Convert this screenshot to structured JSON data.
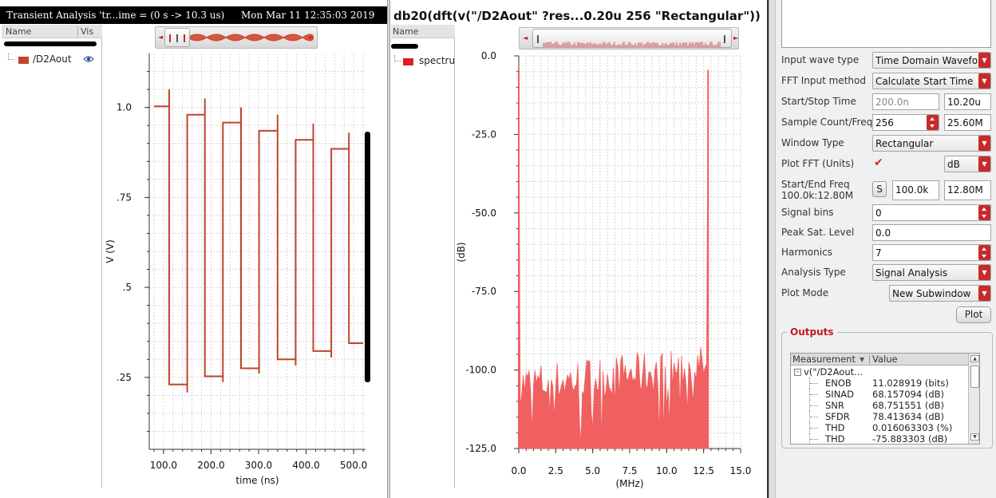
{
  "left_pane": {
    "title": "Transient Analysis 'tr...ime = (0 s -> 10.3 us)",
    "timestamp": "Mon Mar 11 12:35:03 2019",
    "tree_header": {
      "name": "Name",
      "vis": "Vis"
    },
    "signal": {
      "name": "/D2Aout",
      "color": "#c0452a"
    },
    "chart_data": {
      "type": "line",
      "xlabel": "time (ns)",
      "ylabel": "V (V)",
      "x_ticks": [
        "100.0",
        "200.0",
        "300.0",
        "400.0",
        "500.0"
      ],
      "y_ticks": [
        "1.0",
        ".75",
        ".5",
        ".25"
      ],
      "xlim": [
        70,
        525
      ],
      "ylim": [
        0.05,
        1.15
      ],
      "series": [
        {
          "name": "/D2Aout",
          "color": "#c0452a",
          "points": [
            [
              80,
              1.003
            ],
            [
              112,
              1.003
            ],
            [
              112,
              1.05
            ],
            [
              112,
              0.23
            ],
            [
              150,
              0.23
            ],
            [
              150,
              0.208
            ],
            [
              150,
              0.98
            ],
            [
              187,
              0.98
            ],
            [
              187,
              1.025
            ],
            [
              187,
              0.253
            ],
            [
              225,
              0.253
            ],
            [
              225,
              0.237
            ],
            [
              225,
              0.958
            ],
            [
              263,
              0.958
            ],
            [
              263,
              1.0
            ],
            [
              263,
              0.275
            ],
            [
              301,
              0.275
            ],
            [
              301,
              0.26
            ],
            [
              301,
              0.935
            ],
            [
              340,
              0.935
            ],
            [
              340,
              0.98
            ],
            [
              340,
              0.3
            ],
            [
              378,
              0.3
            ],
            [
              378,
              0.283
            ],
            [
              378,
              0.91
            ],
            [
              415,
              0.91
            ],
            [
              415,
              0.955
            ],
            [
              415,
              0.323
            ],
            [
              453,
              0.323
            ],
            [
              453,
              0.305
            ],
            [
              453,
              0.885
            ],
            [
              490,
              0.885
            ],
            [
              490,
              0.93
            ],
            [
              490,
              0.345
            ],
            [
              520,
              0.345
            ]
          ]
        }
      ]
    }
  },
  "middle_pane": {
    "title": "db20(dft(v(\"/D2Aout\" ?res...0.20u 256 \"Rectangular\"))",
    "tree_header": {
      "name": "Name"
    },
    "signal": {
      "name": "spectrum",
      "color": "#e01c1c"
    },
    "chart_data": {
      "type": "line",
      "xlabel": "(MHz)",
      "ylabel": "(dB)",
      "x_ticks": [
        "0.0",
        "2.5",
        "5.0",
        "7.5",
        "10.0",
        "12.5",
        "15.0"
      ],
      "y_ticks": [
        "0.0",
        "-25.0",
        "-50.0",
        "-75.0",
        "-100.0",
        "-125.0"
      ],
      "xlim": [
        0,
        15
      ],
      "ylim": [
        -125,
        0
      ],
      "fundamental_mhz": 0.0,
      "nyquist_mhz": 12.8,
      "peak_level_db": -4.5,
      "noise_floor_db": -100,
      "series_color": "#f06060"
    }
  },
  "right_panel": {
    "fields": [
      {
        "label": "Input wave type",
        "value": "Time Domain Waveform",
        "kind": "combo"
      },
      {
        "label": "FFT Input method",
        "value": "Calculate Start Time",
        "kind": "combo"
      },
      {
        "label": "Start/Stop Time",
        "value": "200.0n",
        "value2": "10.20u",
        "kind": "text2"
      },
      {
        "label": "Sample Count/Freq",
        "value": "256",
        "value2": "25.60M",
        "kind": "spin2"
      },
      {
        "label": "Window Type",
        "value": "Rectangular",
        "kind": "combo"
      },
      {
        "label": "Plot FFT (Units)",
        "value": "dB",
        "kind": "check"
      },
      {
        "label": "Start/End Freq",
        "sublabel": "100.0k:12.80M",
        "button": "S",
        "value": "100.0k",
        "value2": "12.80M",
        "kind": "freq"
      },
      {
        "label": "Signal bins",
        "value": "0",
        "kind": "spin"
      },
      {
        "label": "Peak Sat. Level",
        "value": "0.0",
        "kind": "text"
      },
      {
        "label": "Harmonics",
        "value": "7",
        "kind": "spin"
      },
      {
        "label": "Analysis Type",
        "value": "Signal Analysis",
        "kind": "combo"
      },
      {
        "label": "Plot Mode",
        "value": "New Subwindow",
        "kind": "combo-short"
      }
    ],
    "plot_button": "Plot",
    "outputs": {
      "title": "Outputs",
      "columns": [
        "Measurement",
        "Value"
      ],
      "parent": "v(\"/D2Aout...",
      "rows": [
        {
          "name": "ENOB",
          "value": "11.028919 (bits)"
        },
        {
          "name": "SINAD",
          "value": "68.157094 (dB)"
        },
        {
          "name": "SNR",
          "value": "68.751551 (dB)"
        },
        {
          "name": "SFDR",
          "value": "78.413634 (dB)"
        },
        {
          "name": "THD",
          "value": "0.016063303 (%)"
        },
        {
          "name": "THD",
          "value": "-75.883303 (dB)"
        }
      ]
    }
  }
}
